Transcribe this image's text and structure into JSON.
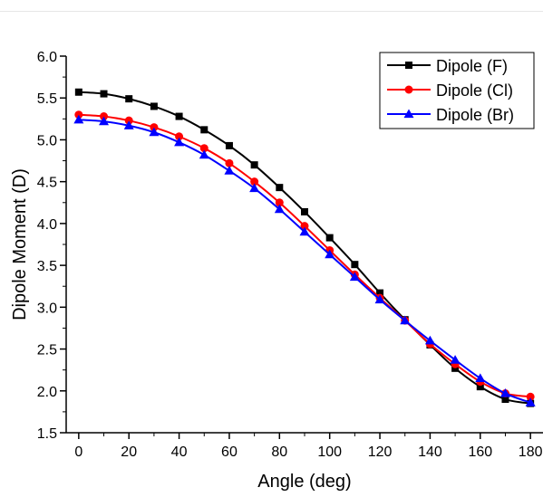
{
  "chart_data": {
    "type": "line",
    "title": "",
    "xlabel": "Angle (deg)",
    "ylabel": "Dipole Moment (D)",
    "xlim": [
      -5,
      185
    ],
    "ylim": [
      1.5,
      6.0
    ],
    "x_ticks": [
      0,
      20,
      40,
      60,
      80,
      100,
      120,
      140,
      160,
      180
    ],
    "y_ticks": [
      1.5,
      2.0,
      2.5,
      3.0,
      3.5,
      4.0,
      4.5,
      5.0,
      5.5,
      6.0
    ],
    "x_tick_labels": [
      "0",
      "20",
      "40",
      "60",
      "80",
      "100",
      "120",
      "140",
      "160",
      "180"
    ],
    "y_tick_labels": [
      "1.5",
      "2.0",
      "2.5",
      "3.0",
      "3.5",
      "4.0",
      "4.5",
      "5.0",
      "5.5",
      "6.0"
    ],
    "grid": false,
    "legend_position": "top-right",
    "x": [
      0,
      10,
      20,
      30,
      40,
      50,
      60,
      70,
      80,
      90,
      100,
      110,
      120,
      130,
      140,
      150,
      160,
      170,
      180
    ],
    "series": [
      {
        "name": "Dipole (F)",
        "color": "#000000",
        "marker": "square",
        "values": [
          5.57,
          5.55,
          5.49,
          5.4,
          5.28,
          5.12,
          4.93,
          4.7,
          4.43,
          4.14,
          3.83,
          3.51,
          3.17,
          2.85,
          2.55,
          2.27,
          2.05,
          1.9,
          1.85
        ]
      },
      {
        "name": "Dipole (Cl)",
        "color": "#ff0000",
        "marker": "circle",
        "values": [
          5.3,
          5.28,
          5.23,
          5.15,
          5.04,
          4.9,
          4.72,
          4.5,
          4.25,
          3.97,
          3.68,
          3.39,
          3.11,
          2.84,
          2.56,
          2.32,
          2.11,
          1.97,
          1.93
        ]
      },
      {
        "name": "Dipole (Br)",
        "color": "#0000ff",
        "marker": "triangle",
        "values": [
          5.24,
          5.22,
          5.17,
          5.09,
          4.97,
          4.82,
          4.63,
          4.42,
          4.17,
          3.9,
          3.63,
          3.36,
          3.09,
          2.84,
          2.6,
          2.37,
          2.15,
          1.97,
          1.86
        ]
      }
    ]
  }
}
